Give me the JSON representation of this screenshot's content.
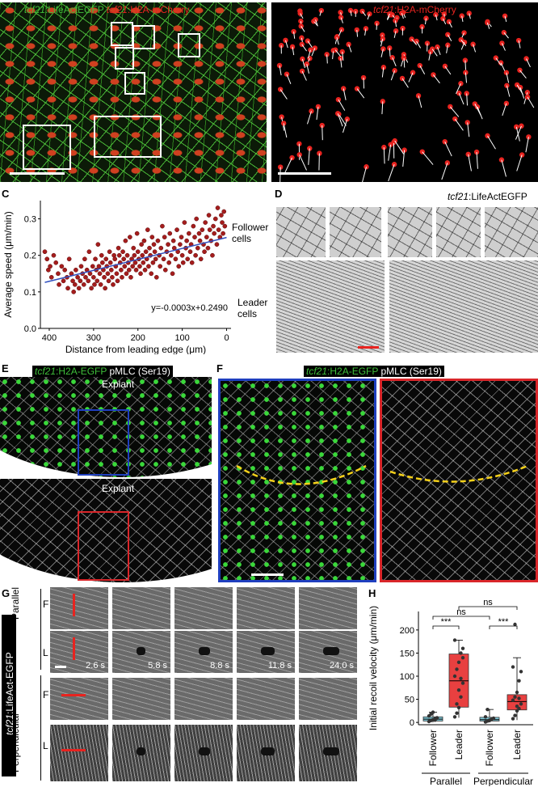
{
  "panels": {
    "A": {
      "label": "A",
      "title_green": "tcf21:LifeActEGFP",
      "title_green_prefix": "tcf21",
      "title_green_suffix": ":LifeActEGFP",
      "title_red_prefix": "tcf21",
      "title_red_suffix": ":H2A-mCherry"
    },
    "B": {
      "label": "B",
      "title_prefix": "tcf21",
      "title_suffix": ":H2A-mCherry"
    },
    "C": {
      "label": "C"
    },
    "D": {
      "label": "D",
      "title_prefix": "tcf21",
      "title_suffix": ":LifeActEGFP",
      "follower_label_1": "Follower",
      "follower_label_2": "cells",
      "leader_label_1": "Leader",
      "leader_label_2": "cells"
    },
    "E": {
      "label": "E",
      "title_green_prefix": "tcf21",
      "title_green_suffix": ":H2A-EGFP",
      "title_white": "pMLC (Ser19)",
      "explant_top": "Explant",
      "explant_bottom": "Explant"
    },
    "F": {
      "label": "F",
      "title_green_prefix": "tcf21",
      "title_green_suffix": ":H2A-EGFP",
      "title_white": "pMLC (Ser19)"
    },
    "G": {
      "label": "G",
      "side_label_prefix": "tcf21",
      "side_label_suffix": ":LifeAct-EGFP",
      "parallel": "Parallel",
      "perpendicular": "Perpendicular",
      "row_F": "F",
      "row_L": "L",
      "times": [
        "2.6 s",
        "5.8 s",
        "8.8 s",
        "11.8 s",
        "24.0 s"
      ]
    },
    "H": {
      "label": "H"
    }
  },
  "colors": {
    "red_text": "#e8231f",
    "green_text": "#3fbf3a",
    "blue_frame": "#1f3fbf",
    "red_frame": "#d9262a",
    "scale_red": "#e8231f",
    "trend_line": "#2f4fbf",
    "point_fill": "#a51d1d",
    "box_red": "#e84040",
    "box_cyan": "#7fc7d6",
    "dashed_yellow": "#f5d11a"
  },
  "chart_data": [
    {
      "type": "scatter",
      "panel": "C",
      "xlabel": "Distance from leading edge (μm)",
      "ylabel": "Average speed (μm/min)",
      "xlim": [
        420,
        -10
      ],
      "ylim": [
        0,
        0.35
      ],
      "xticks": [
        400,
        300,
        200,
        100,
        0
      ],
      "yticks": [
        0.0,
        0.1,
        0.2,
        0.3
      ],
      "ytick_labels": [
        "0.0",
        "0.1",
        "0.2",
        "0.3"
      ],
      "annotation": "y=-0.0003x+0.2490",
      "fit": {
        "slope": -0.0003,
        "intercept": 0.249
      },
      "points": [
        [
          410,
          0.21
        ],
        [
          405,
          0.19
        ],
        [
          402,
          0.16
        ],
        [
          398,
          0.17
        ],
        [
          395,
          0.14
        ],
        [
          390,
          0.2
        ],
        [
          385,
          0.18
        ],
        [
          380,
          0.15
        ],
        [
          378,
          0.12
        ],
        [
          372,
          0.17
        ],
        [
          368,
          0.13
        ],
        [
          365,
          0.16
        ],
        [
          360,
          0.14
        ],
        [
          358,
          0.11
        ],
        [
          355,
          0.19
        ],
        [
          350,
          0.15
        ],
        [
          347,
          0.13
        ],
        [
          345,
          0.1
        ],
        [
          342,
          0.12
        ],
        [
          340,
          0.16
        ],
        [
          336,
          0.14
        ],
        [
          333,
          0.11
        ],
        [
          330,
          0.13
        ],
        [
          328,
          0.17
        ],
        [
          325,
          0.15
        ],
        [
          322,
          0.12
        ],
        [
          320,
          0.19
        ],
        [
          318,
          0.14
        ],
        [
          315,
          0.16
        ],
        [
          312,
          0.13
        ],
        [
          310,
          0.21
        ],
        [
          308,
          0.15
        ],
        [
          305,
          0.11
        ],
        [
          302,
          0.17
        ],
        [
          300,
          0.14
        ],
        [
          298,
          0.12
        ],
        [
          296,
          0.19
        ],
        [
          294,
          0.16
        ],
        [
          292,
          0.13
        ],
        [
          290,
          0.23
        ],
        [
          288,
          0.17
        ],
        [
          286,
          0.15
        ],
        [
          284,
          0.12
        ],
        [
          282,
          0.2
        ],
        [
          280,
          0.18
        ],
        [
          278,
          0.16
        ],
        [
          276,
          0.14
        ],
        [
          274,
          0.11
        ],
        [
          272,
          0.19
        ],
        [
          270,
          0.17
        ],
        [
          268,
          0.15
        ],
        [
          266,
          0.13
        ],
        [
          264,
          0.21
        ],
        [
          262,
          0.18
        ],
        [
          260,
          0.16
        ],
        [
          258,
          0.14
        ],
        [
          256,
          0.12
        ],
        [
          254,
          0.2
        ],
        [
          252,
          0.19
        ],
        [
          250,
          0.17
        ],
        [
          248,
          0.15
        ],
        [
          246,
          0.13
        ],
        [
          244,
          0.22
        ],
        [
          242,
          0.2
        ],
        [
          240,
          0.18
        ],
        [
          238,
          0.16
        ],
        [
          236,
          0.14
        ],
        [
          234,
          0.21
        ],
        [
          232,
          0.19
        ],
        [
          230,
          0.17
        ],
        [
          228,
          0.24
        ],
        [
          226,
          0.15
        ],
        [
          224,
          0.2
        ],
        [
          222,
          0.18
        ],
        [
          220,
          0.16
        ],
        [
          218,
          0.25
        ],
        [
          216,
          0.14
        ],
        [
          214,
          0.19
        ],
        [
          212,
          0.17
        ],
        [
          210,
          0.22
        ],
        [
          208,
          0.2
        ],
        [
          206,
          0.18
        ],
        [
          204,
          0.16
        ],
        [
          202,
          0.26
        ],
        [
          200,
          0.21
        ],
        [
          198,
          0.19
        ],
        [
          196,
          0.17
        ],
        [
          194,
          0.15
        ],
        [
          192,
          0.23
        ],
        [
          190,
          0.2
        ],
        [
          188,
          0.18
        ],
        [
          186,
          0.24
        ],
        [
          184,
          0.16
        ],
        [
          182,
          0.21
        ],
        [
          180,
          0.19
        ],
        [
          178,
          0.27
        ],
        [
          176,
          0.17
        ],
        [
          174,
          0.22
        ],
        [
          172,
          0.2
        ],
        [
          170,
          0.15
        ],
        [
          168,
          0.25
        ],
        [
          166,
          0.18
        ],
        [
          164,
          0.23
        ],
        [
          162,
          0.21
        ],
        [
          160,
          0.19
        ],
        [
          158,
          0.14
        ],
        [
          155,
          0.24
        ],
        [
          152,
          0.2
        ],
        [
          150,
          0.17
        ],
        [
          148,
          0.22
        ],
        [
          145,
          0.28
        ],
        [
          142,
          0.19
        ],
        [
          140,
          0.25
        ],
        [
          138,
          0.16
        ],
        [
          135,
          0.21
        ],
        [
          132,
          0.23
        ],
        [
          130,
          0.18
        ],
        [
          128,
          0.26
        ],
        [
          125,
          0.2
        ],
        [
          122,
          0.15
        ],
        [
          120,
          0.24
        ],
        [
          118,
          0.22
        ],
        [
          115,
          0.19
        ],
        [
          112,
          0.27
        ],
        [
          110,
          0.21
        ],
        [
          108,
          0.17
        ],
        [
          105,
          0.23
        ],
        [
          102,
          0.25
        ],
        [
          100,
          0.2
        ],
        [
          98,
          0.18
        ],
        [
          95,
          0.29
        ],
        [
          92,
          0.22
        ],
        [
          90,
          0.24
        ],
        [
          88,
          0.19
        ],
        [
          85,
          0.26
        ],
        [
          82,
          0.21
        ],
        [
          80,
          0.23
        ],
        [
          78,
          0.18
        ],
        [
          75,
          0.28
        ],
        [
          72,
          0.25
        ],
        [
          70,
          0.2
        ],
        [
          68,
          0.3
        ],
        [
          65,
          0.22
        ],
        [
          62,
          0.26
        ],
        [
          60,
          0.24
        ],
        [
          58,
          0.19
        ],
        [
          55,
          0.27
        ],
        [
          52,
          0.23
        ],
        [
          50,
          0.21
        ],
        [
          48,
          0.29
        ],
        [
          45,
          0.25
        ],
        [
          42,
          0.22
        ],
        [
          40,
          0.31
        ],
        [
          38,
          0.27
        ],
        [
          35,
          0.24
        ],
        [
          32,
          0.2
        ],
        [
          30,
          0.28
        ],
        [
          28,
          0.26
        ],
        [
          25,
          0.3
        ],
        [
          22,
          0.23
        ],
        [
          20,
          0.33
        ],
        [
          18,
          0.27
        ],
        [
          15,
          0.25
        ],
        [
          12,
          0.31
        ],
        [
          10,
          0.29
        ],
        [
          8,
          0.26
        ],
        [
          6,
          0.32
        ],
        [
          4,
          0.28
        ]
      ]
    },
    {
      "type": "box",
      "panel": "H",
      "ylabel": "Initial recoil velocity (μm/min)",
      "ylim": [
        -5,
        240
      ],
      "yticks": [
        0,
        50,
        100,
        150,
        200
      ],
      "categories": [
        "Follower",
        "Leader",
        "Follower",
        "Leader"
      ],
      "groups": [
        "Parallel",
        "Perpendicular"
      ],
      "boxes": [
        {
          "category": "Follower",
          "group": "Parallel",
          "min": 0,
          "q1": 3,
          "median": 7,
          "q3": 12,
          "max": 22,
          "color": "#7fc7d6",
          "points": [
            2,
            4,
            6,
            8,
            10,
            14,
            18,
            22,
            5,
            9
          ]
        },
        {
          "category": "Leader",
          "group": "Parallel",
          "min": 10,
          "q1": 33,
          "median": 90,
          "q3": 148,
          "max": 178,
          "color": "#e84040",
          "points": [
            12,
            20,
            32,
            55,
            85,
            100,
            115,
            130,
            150,
            160,
            178,
            40,
            70,
            95,
            140
          ]
        },
        {
          "category": "Follower",
          "group": "Perpendicular",
          "min": 0,
          "q1": 3,
          "median": 6,
          "q3": 11,
          "max": 28,
          "color": "#7fc7d6",
          "points": [
            1,
            3,
            5,
            7,
            9,
            12,
            28,
            4
          ]
        },
        {
          "category": "Leader",
          "group": "Perpendicular",
          "min": 5,
          "q1": 27,
          "median": 45,
          "q3": 60,
          "max": 140,
          "color": "#e84040",
          "points": [
            8,
            15,
            25,
            30,
            40,
            48,
            55,
            65,
            90,
            110,
            120,
            212,
            35,
            52
          ]
        }
      ],
      "significance": [
        {
          "pair": [
            "Parallel Follower",
            "Parallel Leader"
          ],
          "label": "***"
        },
        {
          "pair": [
            "Perpendicular Follower",
            "Perpendicular Leader"
          ],
          "label": "***"
        },
        {
          "pair": [
            "Parallel Follower",
            "Perpendicular Follower"
          ],
          "label": "ns"
        },
        {
          "pair": [
            "Parallel Leader",
            "Perpendicular Leader"
          ],
          "label": "ns"
        }
      ]
    }
  ]
}
